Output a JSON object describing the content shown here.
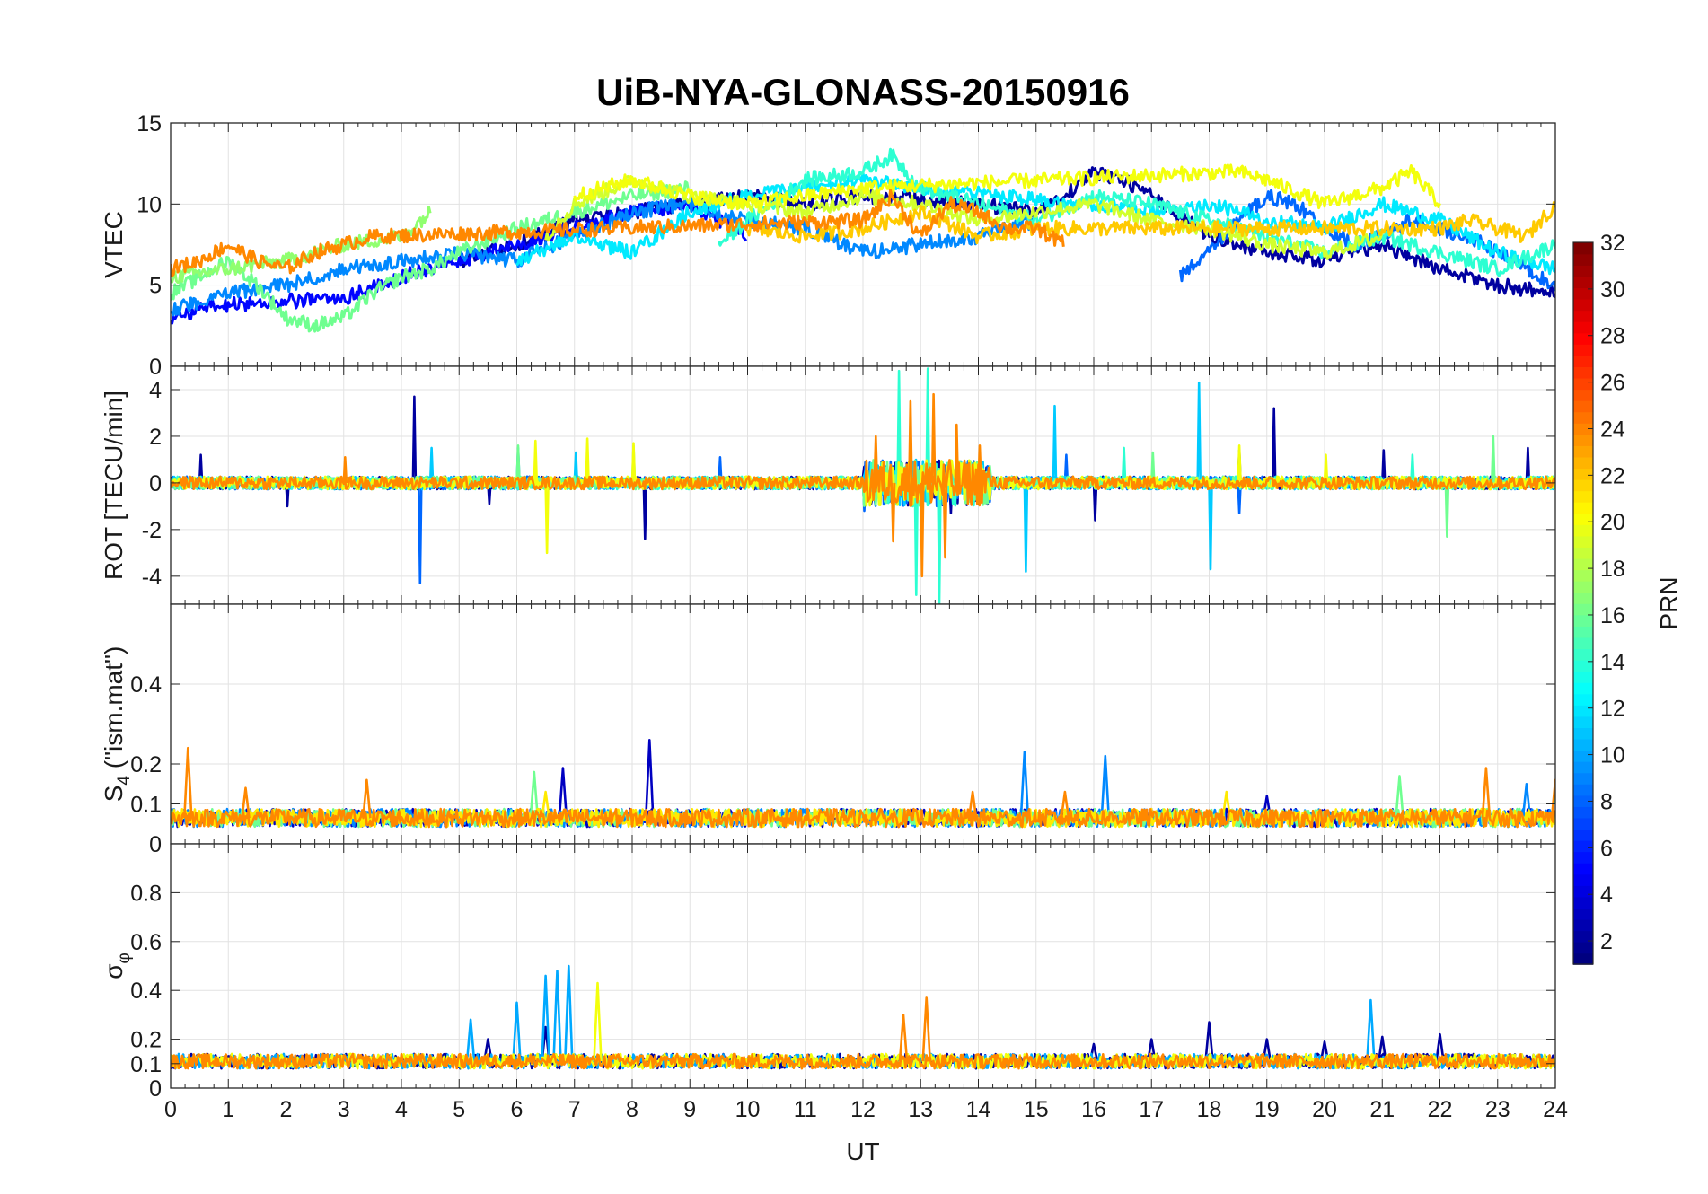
{
  "chart_data": {
    "type": "line",
    "title": "UiB-NYA-GLONASS-20150916",
    "xlabel": "UT",
    "xlim": [
      0,
      24
    ],
    "xticks": [
      "0",
      "1",
      "2",
      "3",
      "4",
      "5",
      "6",
      "7",
      "8",
      "9",
      "10",
      "11",
      "12",
      "13",
      "14",
      "15",
      "16",
      "17",
      "18",
      "19",
      "20",
      "21",
      "22",
      "23",
      "24"
    ],
    "grid": true,
    "colormap": "jet",
    "colorbar": {
      "label": "PRN",
      "range": [
        1,
        32
      ],
      "ticks": [
        "2",
        "4",
        "6",
        "8",
        "10",
        "12",
        "14",
        "16",
        "18",
        "20",
        "22",
        "24",
        "26",
        "28",
        "30",
        "32"
      ]
    },
    "panels": [
      {
        "id": "vtec",
        "ylabel": "VTEC",
        "ylim": [
          0,
          15
        ],
        "yticks": [
          "0",
          "5",
          "10",
          "15"
        ],
        "series": [
          {
            "prn": 2,
            "x": [
              5.0,
              6.0,
              7.0,
              8.0,
              9.0,
              10.0,
              11.0,
              12.0,
              14.0,
              15.0,
              15.5,
              16.0,
              16.5,
              17.0,
              18.0,
              19.0,
              20.0,
              21.0,
              22.0,
              23.0,
              24.0
            ],
            "y": [
              6.5,
              7.5,
              9.0,
              9.5,
              10.0,
              10.5,
              10.0,
              10.5,
              10.0,
              9.5,
              10.5,
              12.0,
              11.5,
              10.5,
              8.0,
              7.0,
              6.5,
              7.5,
              6.0,
              5.0,
              4.5
            ]
          },
          {
            "prn": 5,
            "x": [
              0.0,
              0.5,
              1.0,
              2.0,
              3.0,
              4.0,
              5.0,
              6.0,
              7.0,
              8.0,
              9.0,
              10.0
            ],
            "y": [
              3.0,
              3.5,
              3.8,
              4.0,
              4.2,
              5.5,
              6.5,
              7.5,
              8.5,
              9.5,
              10.0,
              8.0
            ]
          },
          {
            "prn": 8,
            "x": [
              17.5,
              18.0,
              18.5,
              19.0,
              19.5,
              20.0,
              20.5,
              21.0,
              21.5,
              22.0,
              22.5,
              23.0,
              23.5,
              24.0
            ],
            "y": [
              5.5,
              7.0,
              9.0,
              10.5,
              10.0,
              8.5,
              7.5,
              8.0,
              9.0,
              8.5,
              8.0,
              7.0,
              6.0,
              5.0
            ]
          },
          {
            "prn": 9,
            "x": [
              0.0,
              1.0,
              2.0,
              3.0,
              4.0,
              5.0,
              6.0,
              7.0,
              8.0,
              9.0,
              10.0,
              11.0,
              12.0,
              13.0,
              14.0,
              15.0
            ],
            "y": [
              3.5,
              4.5,
              5.0,
              6.0,
              6.5,
              7.0,
              6.5,
              8.0,
              9.5,
              10.0,
              9.0,
              8.5,
              7.0,
              7.5,
              8.0,
              9.0
            ]
          },
          {
            "prn": 12,
            "x": [
              6.0,
              7.0,
              8.0,
              9.0,
              10.0,
              11.0,
              12.0,
              13.0,
              16.0,
              17.0,
              18.0,
              19.0,
              20.0,
              21.0,
              22.0,
              23.0,
              24.0
            ],
            "y": [
              6.5,
              8.0,
              7.0,
              9.5,
              10.5,
              11.0,
              11.5,
              11.0,
              10.0,
              9.5,
              10.0,
              9.0,
              8.5,
              10.0,
              9.0,
              7.0,
              6.0
            ]
          },
          {
            "prn": 14,
            "x": [
              9.5,
              10.0,
              11.0,
              12.0,
              12.5,
              13.0,
              14.0,
              15.0,
              16.0,
              17.0,
              18.0,
              19.0,
              20.0,
              21.0,
              22.0,
              23.0,
              24.0
            ],
            "y": [
              7.5,
              9.0,
              11.5,
              12.0,
              13.0,
              11.0,
              10.0,
              9.0,
              10.5,
              10.0,
              9.0,
              8.0,
              7.0,
              8.0,
              7.0,
              6.0,
              7.5
            ]
          },
          {
            "prn": 16,
            "x": [
              0.0,
              0.5,
              1.0,
              1.5,
              2.0,
              2.5,
              3.0,
              3.5,
              4.0,
              4.5,
              5.0,
              6.0,
              7.0,
              8.0,
              9.0
            ],
            "y": [
              4.5,
              5.5,
              6.5,
              5.0,
              3.0,
              2.5,
              3.0,
              4.5,
              5.5,
              6.0,
              7.0,
              8.5,
              9.5,
              10.5,
              11.0
            ]
          },
          {
            "prn": 17,
            "x": [
              0.0,
              1.0,
              2.0,
              3.0,
              4.0,
              4.5
            ],
            "y": [
              5.5,
              6.0,
              6.5,
              7.5,
              8.0,
              9.5
            ]
          },
          {
            "prn": 19,
            "x": [
              6.5,
              7.0,
              8.0,
              9.0,
              10.0,
              11.0,
              12.0,
              13.0,
              14.0,
              15.0,
              16.0,
              17.0,
              18.0,
              19.0,
              20.0,
              21.0
            ],
            "y": [
              8.0,
              10.0,
              11.5,
              10.5,
              10.0,
              9.5,
              10.5,
              10.0,
              9.0,
              9.5,
              10.0,
              9.0,
              8.5,
              7.5,
              7.0,
              8.0
            ]
          },
          {
            "prn": 20,
            "x": [
              7.0,
              8.0,
              9.0,
              10.0,
              11.0,
              12.0,
              18.5,
              19.0,
              20.0,
              21.0,
              21.5,
              22.0
            ],
            "y": [
              10.5,
              11.5,
              10.5,
              10.0,
              10.5,
              11.0,
              12.0,
              11.5,
              10.0,
              11.0,
              12.0,
              10.0
            ]
          },
          {
            "prn": 22,
            "x": [
              10.0,
              11.0,
              12.0,
              13.0,
              14.0,
              15.0,
              22.0,
              22.5,
              23.0,
              23.5,
              24.0
            ],
            "y": [
              8.5,
              8.0,
              8.5,
              9.5,
              8.0,
              8.5,
              8.5,
              9.0,
              8.5,
              8.0,
              10.0
            ]
          },
          {
            "prn": 24,
            "x": [
              0.0,
              0.5,
              1.0,
              1.5,
              2.0,
              2.5,
              3.0,
              3.5,
              12.0,
              12.5,
              13.0,
              13.5,
              14.0,
              14.5,
              15.0,
              15.5
            ],
            "y": [
              6.0,
              6.5,
              7.5,
              6.5,
              6.0,
              7.0,
              7.5,
              8.0,
              9.0,
              10.5,
              8.0,
              10.0,
              9.5,
              8.5,
              8.5,
              7.5
            ]
          }
        ]
      },
      {
        "id": "rot",
        "ylabel": "ROT [TECU/min]",
        "ylim": [
          -5.2,
          5.0
        ],
        "yticks": [
          "-4",
          "-2",
          "0",
          "2",
          "4"
        ],
        "series": [
          {
            "prn": 2,
            "x": [
              0.5,
              2.0,
              4.2,
              5.5,
              8.2,
              13.5,
              16.0,
              18.5,
              19.1,
              21.0,
              23.5
            ],
            "y": [
              1.2,
              -1.0,
              3.7,
              -0.9,
              -2.4,
              -1.3,
              -1.6,
              1.4,
              3.2,
              1.4,
              1.5
            ]
          },
          {
            "prn": 8,
            "x": [
              4.3,
              6.0,
              9.5,
              12.0,
              15.5,
              18.5
            ],
            "y": [
              -4.3,
              1.5,
              1.1,
              -1.2,
              1.2,
              -1.3
            ]
          },
          {
            "prn": 11,
            "x": [
              4.5,
              7.0,
              14.8,
              15.3,
              17.8,
              18.0
            ],
            "y": [
              1.5,
              1.3,
              -3.8,
              3.3,
              4.3,
              -3.7
            ]
          },
          {
            "prn": 14,
            "x": [
              12.6,
              12.9,
              13.1,
              13.3,
              16.5,
              21.5
            ],
            "y": [
              4.8,
              -4.8,
              4.9,
              -5.2,
              1.5,
              1.2
            ]
          },
          {
            "prn": 16,
            "x": [
              6.0,
              8.0,
              17.0,
              22.1,
              22.9
            ],
            "y": [
              1.6,
              1.6,
              1.3,
              -2.3,
              2.0
            ]
          },
          {
            "prn": 20,
            "x": [
              6.3,
              6.5,
              7.2,
              8.0,
              18.5,
              20.0
            ],
            "y": [
              1.8,
              -3.0,
              1.9,
              1.7,
              1.6,
              1.2
            ]
          },
          {
            "prn": 24,
            "x": [
              3.0,
              12.2,
              12.5,
              12.8,
              13.0,
              13.2,
              13.4,
              13.6,
              14.0,
              24.0
            ],
            "y": [
              1.1,
              2.0,
              -2.5,
              3.5,
              -4.0,
              3.8,
              -3.2,
              2.5,
              1.6,
              0.6
            ]
          }
        ]
      },
      {
        "id": "s4",
        "ylabel": "S",
        "ylabel_sub": "4",
        "ylabel_suffix": " (\"ism.mat\")",
        "ylim": [
          0,
          0.6
        ],
        "yticks": [
          "0",
          "0.1",
          "0.2",
          "0.4"
        ],
        "series": [
          {
            "prn": 3,
            "x": [
              6.8,
              8.3,
              19.0
            ],
            "y": [
              0.19,
              0.26,
              0.12
            ]
          },
          {
            "prn": 9,
            "x": [
              14.8,
              16.2,
              23.5
            ],
            "y": [
              0.23,
              0.22,
              0.15
            ]
          },
          {
            "prn": 16,
            "x": [
              6.3,
              21.3,
              24.0
            ],
            "y": [
              0.18,
              0.17,
              0.14
            ]
          },
          {
            "prn": 21,
            "x": [
              6.5,
              18.3
            ],
            "y": [
              0.13,
              0.13
            ]
          },
          {
            "prn": 24,
            "x": [
              0.3,
              1.3,
              3.4,
              13.9,
              15.5,
              22.8,
              24.0
            ],
            "y": [
              0.24,
              0.14,
              0.16,
              0.13,
              0.13,
              0.19,
              0.16
            ]
          }
        ]
      },
      {
        "id": "sigma",
        "ylabel": "σ",
        "ylabel_sub": "φ",
        "ylim": [
          0,
          1.0
        ],
        "yticks": [
          "0",
          "0.1",
          "0.2",
          "0.4",
          "0.6",
          "0.8"
        ],
        "series": [
          {
            "prn": 2,
            "x": [
              5.5,
              6.5,
              16.0,
              17.0,
              18.0,
              19.0,
              20.0,
              21.0,
              22.0
            ],
            "y": [
              0.2,
              0.25,
              0.18,
              0.2,
              0.27,
              0.2,
              0.19,
              0.21,
              0.22
            ]
          },
          {
            "prn": 10,
            "x": [
              5.2,
              6.0,
              6.5,
              6.7,
              6.9,
              20.8
            ],
            "y": [
              0.28,
              0.35,
              0.46,
              0.48,
              0.5,
              0.36
            ]
          },
          {
            "prn": 20,
            "x": [
              7.4
            ],
            "y": [
              0.43
            ]
          },
          {
            "prn": 24,
            "x": [
              12.7,
              13.1
            ],
            "y": [
              0.3,
              0.37
            ]
          }
        ]
      }
    ]
  }
}
